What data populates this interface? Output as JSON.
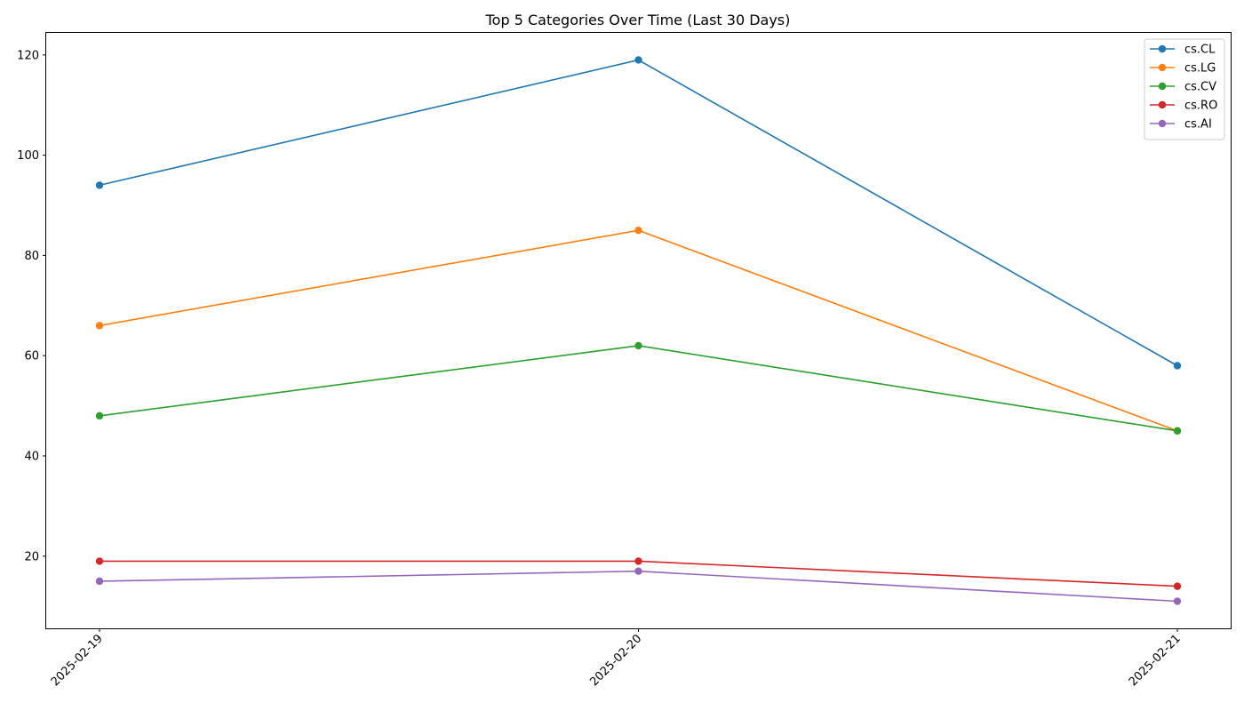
{
  "chart_data": {
    "type": "line",
    "title": "Top 5 Categories Over Time (Last 30 Days)",
    "xlabel": "",
    "ylabel": "",
    "x": [
      "2025-02-19",
      "2025-02-20",
      "2025-02-21"
    ],
    "ylim": [
      5.6,
      124.4
    ],
    "yticks": [
      20,
      40,
      60,
      80,
      100,
      120
    ],
    "grid": false,
    "legend_position": "top-right",
    "series": [
      {
        "name": "cs.CL",
        "color": "#1f77b4",
        "values": [
          94,
          119,
          58
        ]
      },
      {
        "name": "cs.LG",
        "color": "#ff7f0e",
        "values": [
          66,
          85,
          45
        ]
      },
      {
        "name": "cs.CV",
        "color": "#2ca02c",
        "values": [
          48,
          62,
          45
        ]
      },
      {
        "name": "cs.RO",
        "color": "#d62728",
        "values": [
          19,
          19,
          14
        ]
      },
      {
        "name": "cs.AI",
        "color": "#9467bd",
        "values": [
          15,
          17,
          11
        ]
      }
    ]
  }
}
